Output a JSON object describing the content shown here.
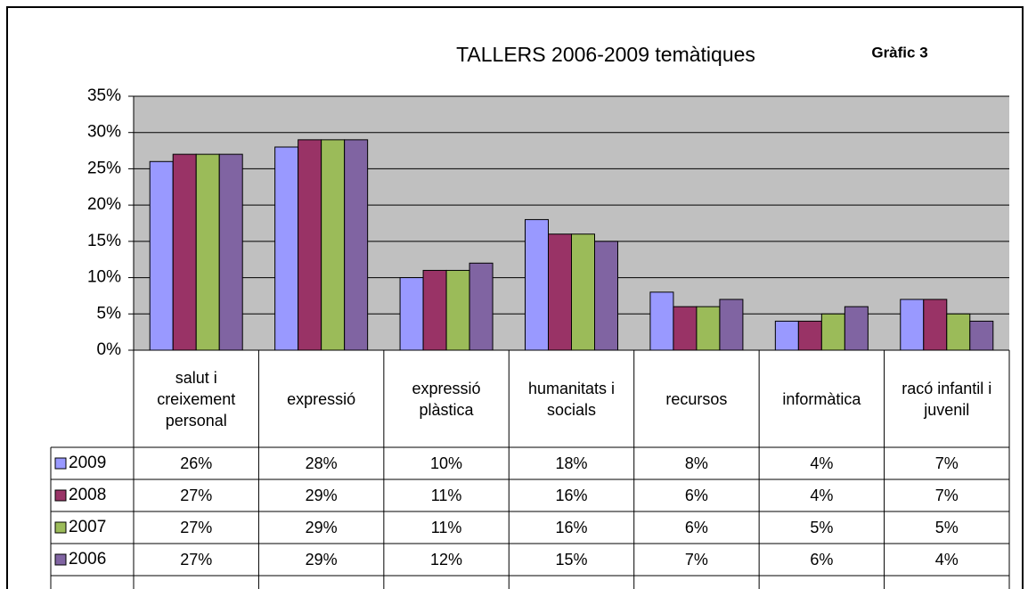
{
  "chart_data": {
    "type": "bar",
    "title": "TALLERS 2006-2009 temàtiques",
    "subtitle": "Gràfic 3",
    "categories": [
      "salut i creixement personal",
      "expressió",
      "expressió plàstica",
      "humanitats i socials",
      "recursos",
      "informàtica",
      "racó infantil i juvenil"
    ],
    "series": [
      {
        "name": "2009",
        "color": "#9999ff",
        "values": [
          26,
          28,
          10,
          18,
          8,
          4,
          7
        ],
        "value_labels": [
          "26%",
          "28%",
          "10%",
          "18%",
          "8%",
          "4%",
          "7%"
        ]
      },
      {
        "name": "2008",
        "color": "#993366",
        "values": [
          27,
          29,
          11,
          16,
          6,
          4,
          7
        ],
        "value_labels": [
          "27%",
          "29%",
          "11%",
          "16%",
          "6%",
          "4%",
          "7%"
        ]
      },
      {
        "name": "2007",
        "color": "#9bbb59",
        "values": [
          27,
          29,
          11,
          16,
          6,
          5,
          5
        ],
        "value_labels": [
          "27%",
          "29%",
          "11%",
          "16%",
          "6%",
          "5%",
          "5%"
        ]
      },
      {
        "name": "2006",
        "color": "#8064a2",
        "values": [
          27,
          29,
          12,
          15,
          7,
          6,
          4
        ],
        "value_labels": [
          "27%",
          "29%",
          "12%",
          "15%",
          "7%",
          "6%",
          "4%"
        ]
      }
    ],
    "ylim": [
      0,
      35
    ],
    "yticks": [
      {
        "value": 0,
        "label": "0%"
      },
      {
        "value": 5,
        "label": "5%"
      },
      {
        "value": 10,
        "label": "10%"
      },
      {
        "value": 15,
        "label": "15%"
      },
      {
        "value": 20,
        "label": "20%"
      },
      {
        "value": 25,
        "label": "25%"
      },
      {
        "value": 30,
        "label": "30%"
      },
      {
        "value": 35,
        "label": "35%"
      }
    ],
    "grid": true
  }
}
